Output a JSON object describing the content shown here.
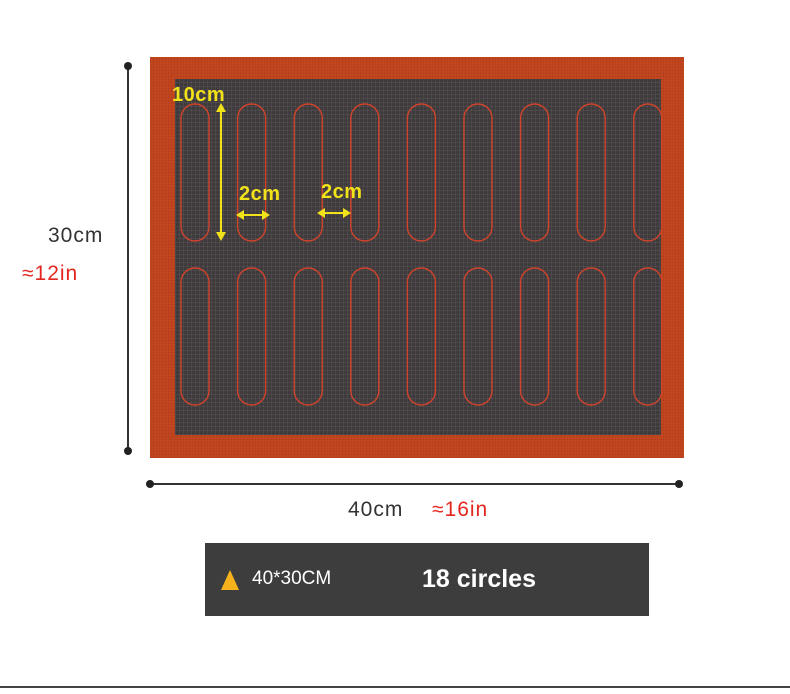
{
  "dimensions": {
    "height_cm": "30cm",
    "height_in": "≈12in",
    "width_cm": "40cm",
    "width_in": "≈16in"
  },
  "mat_annotations": {
    "length": "10cm",
    "gap_1": "2cm",
    "gap_2": "2cm"
  },
  "product_mat": {
    "rows": 2,
    "columns": 9,
    "border_color": "#c4461f",
    "mesh_color": "#3f3a3c",
    "outline_color": "#d2432b"
  },
  "info_bar": {
    "size_text": "40*30CM",
    "count_text": "18 circles",
    "triangle_color": "#f5b21c"
  }
}
